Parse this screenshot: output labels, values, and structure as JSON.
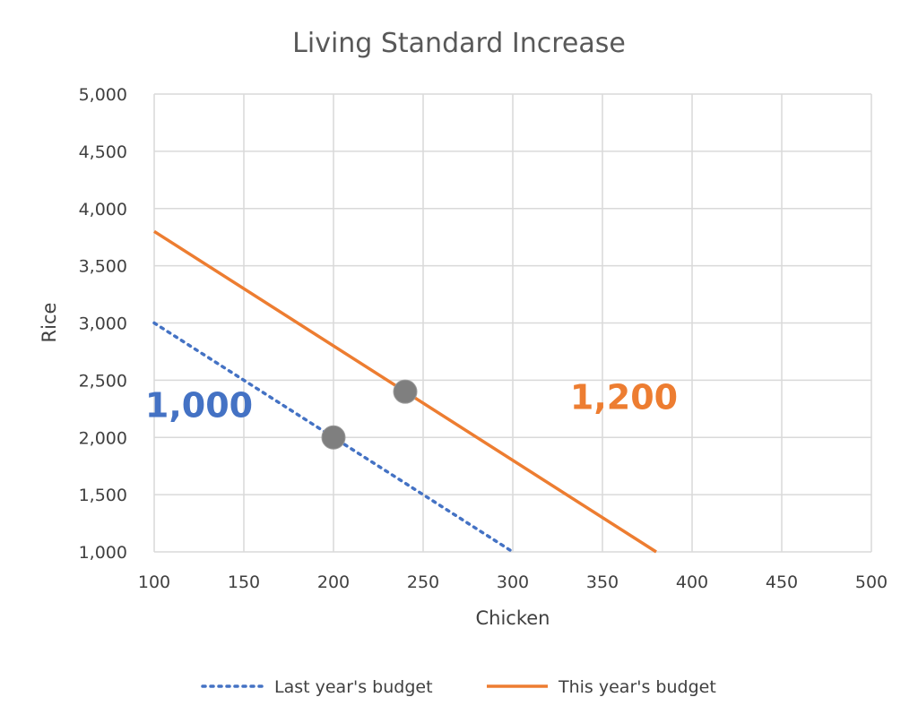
{
  "chart_data": {
    "type": "line",
    "title": "Living Standard Increase",
    "xlabel": "Chicken",
    "ylabel": "Rice",
    "xlim": [
      100,
      500
    ],
    "ylim": [
      1000,
      5000
    ],
    "x_ticks": [
      100,
      150,
      200,
      250,
      300,
      350,
      400,
      450,
      500
    ],
    "y_ticks": [
      1000,
      1500,
      2000,
      2500,
      3000,
      3500,
      4000,
      4500,
      5000
    ],
    "x_tick_labels": [
      "100",
      "150",
      "200",
      "250",
      "300",
      "350",
      "400",
      "450",
      "500"
    ],
    "y_tick_labels": [
      "1,000",
      "1,500",
      "2,000",
      "2,500",
      "3,000",
      "3,500",
      "4,000",
      "4,500",
      "5,000"
    ],
    "grid": true,
    "legend_position": "bottom",
    "series": [
      {
        "name": "Last year's budget",
        "style": "dotted",
        "color": "#4472C4",
        "points": [
          [
            100,
            3000
          ],
          [
            300,
            1000
          ]
        ]
      },
      {
        "name": "This year's budget",
        "style": "solid",
        "color": "#ED7D31",
        "points": [
          [
            100,
            3800
          ],
          [
            380,
            1000
          ]
        ]
      }
    ],
    "markers": [
      {
        "x": 200,
        "y": 2000,
        "color": "#7F7F7F"
      },
      {
        "x": 240,
        "y": 2400,
        "color": "#7F7F7F"
      }
    ],
    "annotations": [
      {
        "text": "1,000",
        "x": 125,
        "y": 2180,
        "color": "#4472C4"
      },
      {
        "text": "1,200",
        "x": 362,
        "y": 2250,
        "color": "#ED7D31"
      }
    ]
  }
}
